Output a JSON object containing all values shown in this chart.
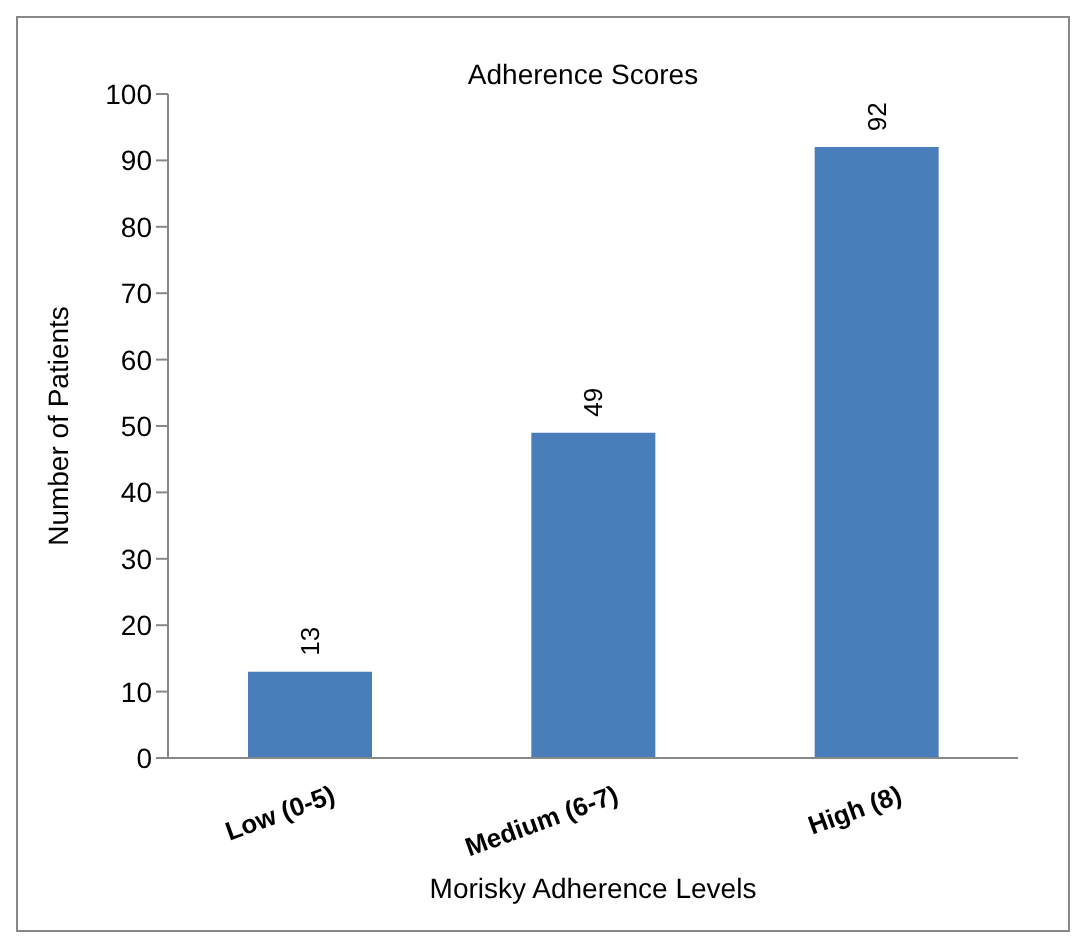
{
  "chart_data": {
    "type": "bar",
    "title": "Adherence Scores",
    "xlabel": "Morisky Adherence Levels",
    "ylabel": "Number of Patients",
    "categories": [
      "Low (0-5)",
      "Medium (6-7)",
      "High (8)"
    ],
    "values": [
      13,
      49,
      92
    ],
    "color": "#4a7ebb",
    "ylim": [
      0,
      100
    ],
    "yticks": [
      0,
      10,
      20,
      30,
      40,
      50,
      60,
      70,
      80,
      90,
      100
    ],
    "grid": false,
    "data_labels": true
  }
}
